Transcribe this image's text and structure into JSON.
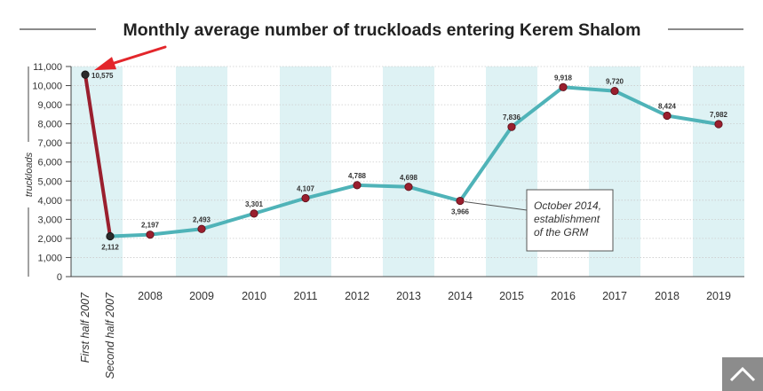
{
  "colors": {
    "line": "#4fb3b8",
    "first_segment": "#9a1f2e",
    "marker": "#9a1f2e",
    "marker_dark": "#2b2b2b",
    "band": "#def2f4",
    "arrow": "#e3262b",
    "grid": "#cccccc"
  },
  "chart_data": {
    "type": "line",
    "title": "Monthly average number of truckloads entering Kerem Shalom",
    "xlabel": "",
    "ylabel": "truckloads",
    "ylim": [
      0,
      11000
    ],
    "yticks": [
      "0",
      "1,000",
      "2,000",
      "3,000",
      "4,000",
      "5,000",
      "6,000",
      "7,000",
      "8,000",
      "9,000",
      "10,000",
      "11,000"
    ],
    "grid": "horizontal dotted",
    "categories": [
      "First half 2007",
      "Second half 2007",
      "2008",
      "2009",
      "2010",
      "2011",
      "2012",
      "2013",
      "2014",
      "2015",
      "2016",
      "2017",
      "2018",
      "2019"
    ],
    "values": [
      10575,
      2112,
      2197,
      2493,
      3301,
      4107,
      4788,
      4698,
      3966,
      7836,
      9918,
      9720,
      8424,
      7982
    ],
    "value_labels": [
      "10,575",
      "2,112",
      "2,197",
      "2,493",
      "3,301",
      "4,107",
      "4,788",
      "4,698",
      "3,966",
      "7,836",
      "9,918",
      "9,720",
      "8,424",
      "7,982"
    ],
    "annotation": {
      "category": "2014",
      "lines": [
        "October 2014,",
        "establishment",
        "of the GRM"
      ]
    },
    "highlight": {
      "category": "First half 2007",
      "marker": "red-arrow"
    }
  },
  "ui": {
    "scroll_top_icon": "chevron-up-icon"
  }
}
